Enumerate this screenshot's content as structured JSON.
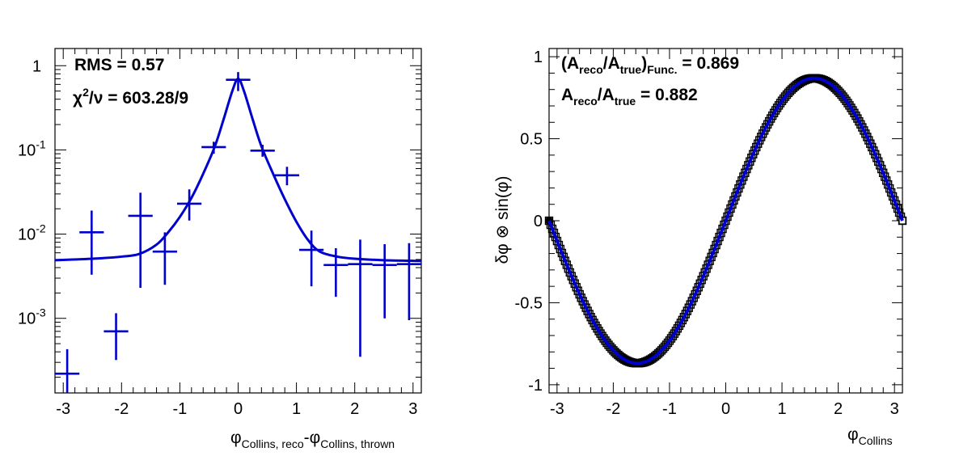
{
  "chart_data": [
    {
      "type": "scatter",
      "log_y": true,
      "xlim": [
        -3.1416,
        3.1416
      ],
      "ylim": [
        0.00013,
        1.6
      ],
      "x_ticks": [
        -3,
        -2,
        -1,
        0,
        1,
        2,
        3
      ],
      "y_ticks": [
        {
          "value": 1,
          "label": "1"
        },
        {
          "value": 0.1,
          "label": "10",
          "exp": "-1"
        },
        {
          "value": 0.01,
          "label": "10",
          "exp": "-2"
        },
        {
          "value": 0.001,
          "label": "10",
          "exp": "-3"
        }
      ],
      "xlabel": {
        "main1": "φ",
        "sub1": "Collins, reco",
        "main2": "-φ",
        "sub2": "Collins, thrown"
      },
      "stats": {
        "rms_label": "RMS = 0.57",
        "chi2_base": "χ",
        "chi2_sup": "2",
        "chi2_tail": "/ν = 603.28/9"
      },
      "color": "#0000cc",
      "bin_half_width": 0.2094,
      "series": [
        {
          "points": [
            {
              "x": -2.932,
              "y": 0.00022,
              "ylo": 0.00012,
              "yhi": 0.00043
            },
            {
              "x": -2.513,
              "y": 0.0105,
              "ylo": 0.0033,
              "yhi": 0.019
            },
            {
              "x": -2.094,
              "y": 0.0007,
              "ylo": 0.00032,
              "yhi": 0.00115
            },
            {
              "x": -1.676,
              "y": 0.0165,
              "ylo": 0.0023,
              "yhi": 0.031
            },
            {
              "x": -1.257,
              "y": 0.0062,
              "ylo": 0.0025,
              "yhi": 0.0105
            },
            {
              "x": -0.838,
              "y": 0.023,
              "ylo": 0.0145,
              "yhi": 0.034
            },
            {
              "x": -0.419,
              "y": 0.108,
              "ylo": 0.09,
              "yhi": 0.125
            },
            {
              "x": 0.0,
              "y": 0.68,
              "ylo": 0.5,
              "yhi": 0.84
            },
            {
              "x": 0.419,
              "y": 0.098,
              "ylo": 0.083,
              "yhi": 0.115
            },
            {
              "x": 0.838,
              "y": 0.05,
              "ylo": 0.038,
              "yhi": 0.063
            },
            {
              "x": 1.257,
              "y": 0.0065,
              "ylo": 0.0024,
              "yhi": 0.011
            },
            {
              "x": 1.676,
              "y": 0.0043,
              "ylo": 0.0018,
              "yhi": 0.0068
            },
            {
              "x": 2.094,
              "y": 0.0044,
              "ylo": 0.00035,
              "yhi": 0.0086
            },
            {
              "x": 2.513,
              "y": 0.0043,
              "ylo": 0.001,
              "yhi": 0.0076
            },
            {
              "x": 2.932,
              "y": 0.0044,
              "ylo": 0.00095,
              "yhi": 0.0078
            }
          ]
        }
      ],
      "fit": {
        "x": [
          -3.14,
          -2.5,
          -2.0,
          -1.7,
          -1.4,
          -1.2,
          -1.0,
          -0.8,
          -0.6,
          -0.4,
          -0.25,
          -0.1,
          0.0,
          0.1,
          0.25,
          0.4,
          0.6,
          0.8,
          1.0,
          1.2,
          1.4,
          1.7,
          2.0,
          2.5,
          3.14
        ],
        "y": [
          0.0049,
          0.0051,
          0.0054,
          0.0058,
          0.0075,
          0.0105,
          0.016,
          0.027,
          0.052,
          0.11,
          0.23,
          0.5,
          0.7,
          0.5,
          0.23,
          0.11,
          0.052,
          0.026,
          0.014,
          0.0085,
          0.0062,
          0.0054,
          0.0051,
          0.0049,
          0.0048
        ]
      }
    },
    {
      "type": "line",
      "xlim": [
        -3.1416,
        3.1416
      ],
      "ylim": [
        -1.05,
        1.05
      ],
      "x_ticks": [
        -3,
        -2,
        -1,
        0,
        1,
        2,
        3
      ],
      "y_ticks": [
        {
          "value": 1,
          "label": "1"
        },
        {
          "value": 0.5,
          "label": "0.5"
        },
        {
          "value": 0,
          "label": "0"
        },
        {
          "value": -0.5,
          "label": "-0.5"
        },
        {
          "value": -1,
          "label": "-1"
        }
      ],
      "ylabel": "δφ ⊗ sin(φ)",
      "xlabel": {
        "main": "φ",
        "sub": "Collins"
      },
      "stats": {
        "line1_main": "(A",
        "line1_sub1": "reco",
        "line1_mid": "/A",
        "line1_sub2": "true",
        "line1_close": ")",
        "line1_sub3": "Func.",
        "line1_tail": " = 0.869",
        "line2_main": "A",
        "line2_sub1": "reco",
        "line2_mid": "/A",
        "line2_sub2": "true",
        "line2_tail": " = 0.882"
      },
      "amplitude": 0.869,
      "marker_color": "#000000",
      "curve_color": "#0000cc"
    }
  ]
}
